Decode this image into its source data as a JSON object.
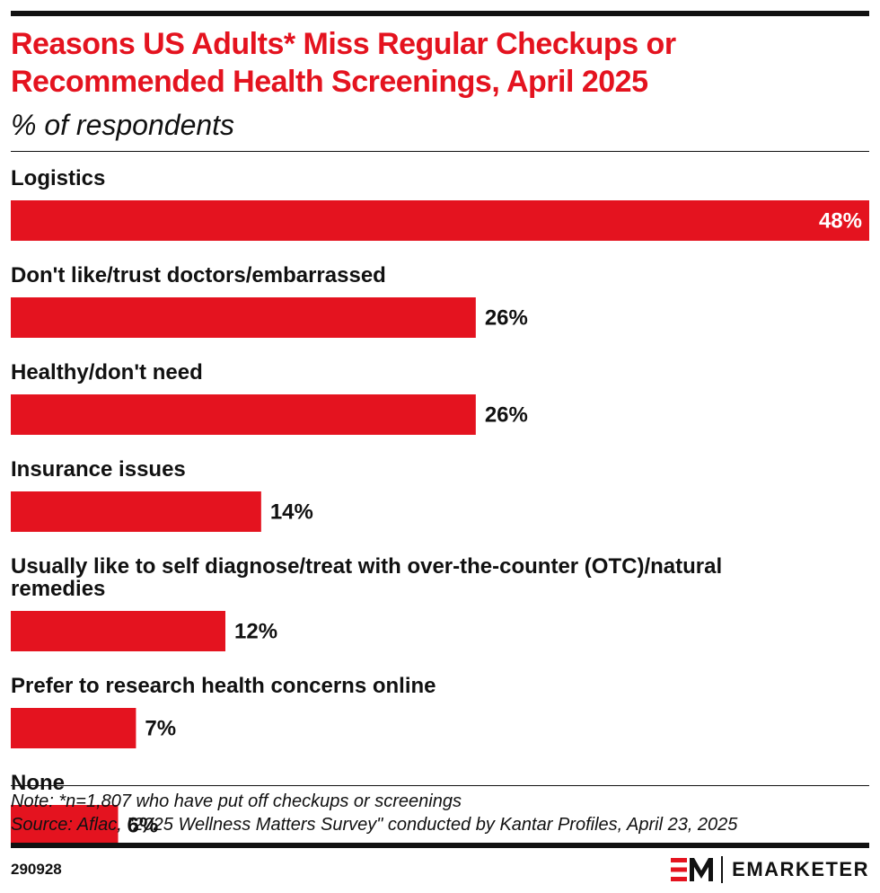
{
  "header": {
    "title": "Reasons US Adults* Miss Regular Checkups or Recommended Health Screenings, April 2025",
    "subtitle": "% of respondents"
  },
  "chart_data": {
    "type": "bar",
    "orientation": "horizontal",
    "title": "Reasons US Adults* Miss Regular Checkups or Recommended Health Screenings, April 2025",
    "subtitle": "% of respondents",
    "categories": [
      "Logistics",
      "Don't like/trust doctors/embarrassed",
      "Healthy/don't need",
      "Insurance issues",
      "Usually like to self diagnose/treat with over-the-counter (OTC)/natural remedies",
      "Prefer to research health concerns online",
      "None"
    ],
    "category_lines": [
      [
        "Logistics"
      ],
      [
        "Don't like/trust doctors/embarrassed"
      ],
      [
        "Healthy/don't need"
      ],
      [
        "Insurance issues"
      ],
      [
        "Usually like to self diagnose/treat with over-the-counter (OTC)/natural",
        "remedies"
      ],
      [
        "Prefer to research health concerns online"
      ],
      [
        "None"
      ]
    ],
    "values": [
      48,
      26,
      26,
      14,
      12,
      7,
      6
    ],
    "value_labels": [
      "48%",
      "26%",
      "26%",
      "14%",
      "12%",
      "7%",
      "6%"
    ],
    "xlim": [
      0,
      48
    ],
    "unit": "%",
    "grid": false,
    "legend": "none",
    "bar_color": "#e4131f"
  },
  "footer": {
    "note": "Note: *n=1,807 who have put off checkups or screenings",
    "source": "Source: Aflac, \"2025 Wellness Matters Survey\" conducted by Kantar Profiles, April 23, 2025",
    "chart_id": "290928",
    "brand": "EMARKETER"
  },
  "colors": {
    "accent": "#e4131f",
    "text": "#111111",
    "background": "#ffffff"
  }
}
